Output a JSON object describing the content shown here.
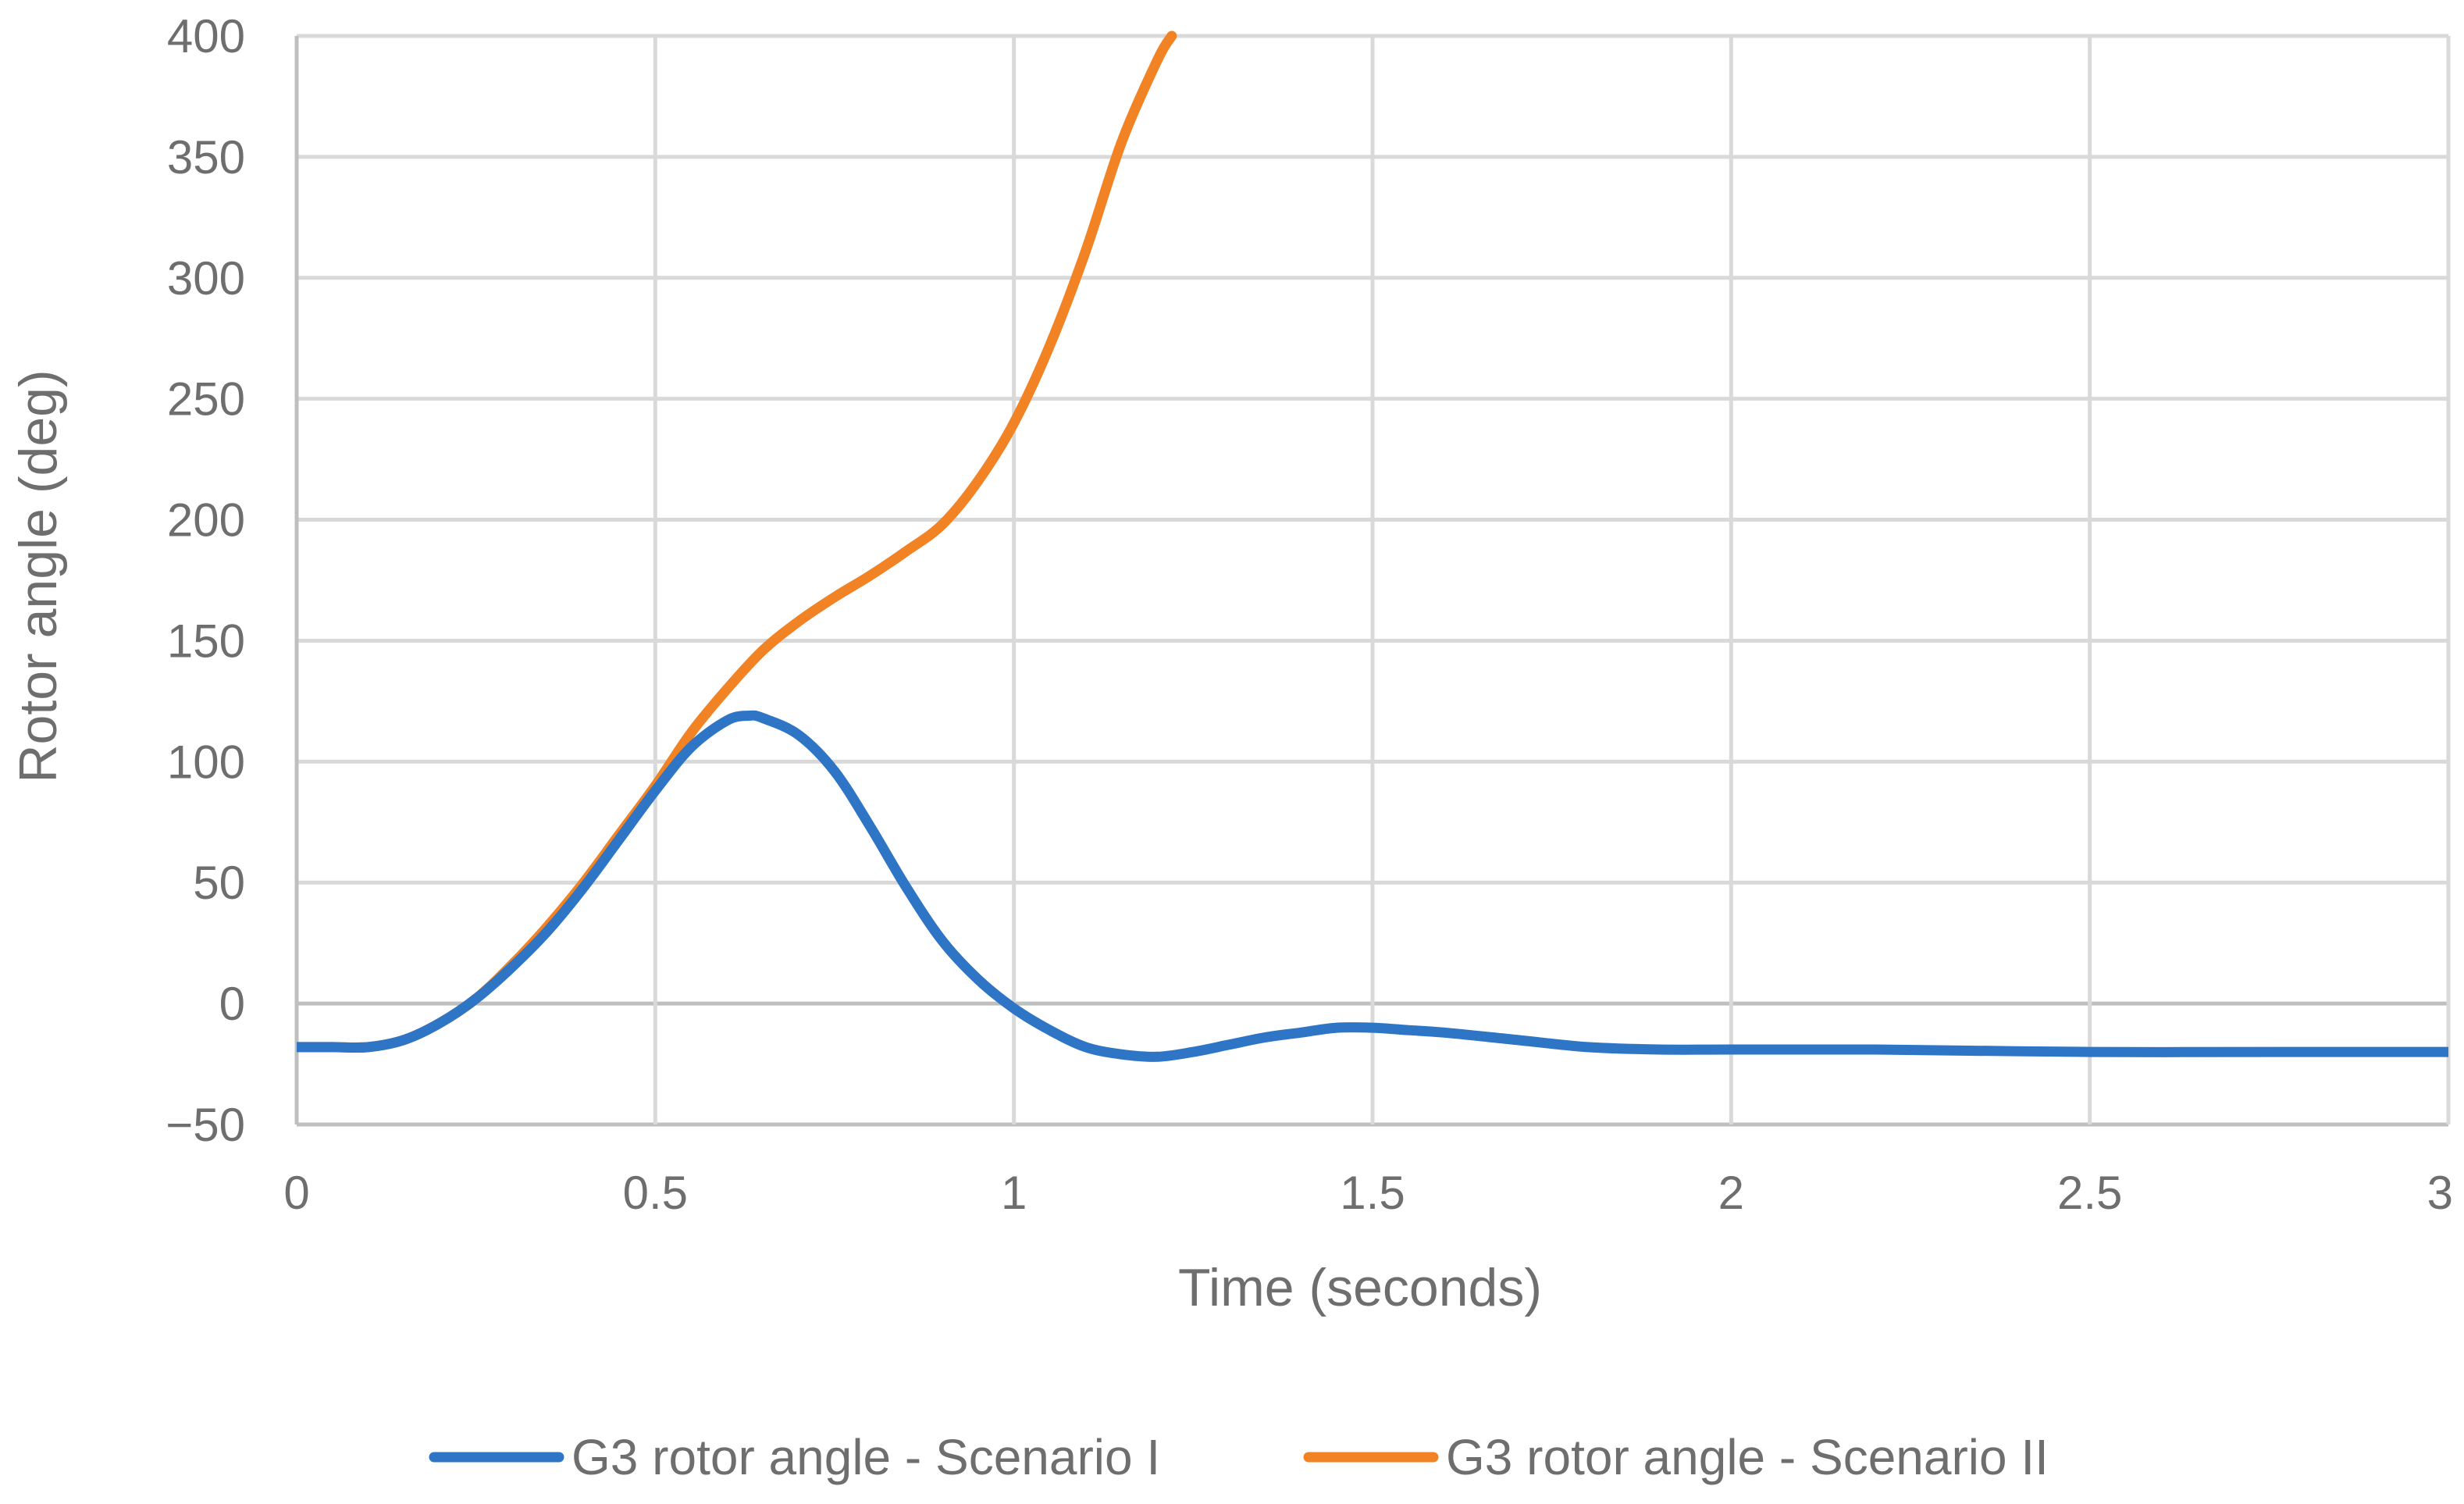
{
  "chart_data": {
    "type": "line",
    "title": "",
    "xlabel": "Time (seconds)",
    "ylabel": "Rotor angle (deg)",
    "xlim": [
      0,
      3
    ],
    "ylim": [
      -50,
      400
    ],
    "x_ticks": [
      "0",
      "0.5",
      "1",
      "1.5",
      "2",
      "2.5",
      "3"
    ],
    "y_ticks": [
      "400",
      "350",
      "300",
      "250",
      "200",
      "150",
      "100",
      "50",
      "0",
      "−50"
    ],
    "grid": true,
    "legend_position": "bottom",
    "series": [
      {
        "name": "G3 rotor angle - Scenario I",
        "color": "#2E75C6",
        "points": [
          [
            0,
            -18
          ],
          [
            0.05,
            -18
          ],
          [
            0.1,
            -18
          ],
          [
            0.15,
            -15
          ],
          [
            0.2,
            -8
          ],
          [
            0.25,
            2
          ],
          [
            0.3,
            15
          ],
          [
            0.35,
            30
          ],
          [
            0.4,
            48
          ],
          [
            0.45,
            68
          ],
          [
            0.5,
            88
          ],
          [
            0.55,
            106
          ],
          [
            0.6,
            117
          ],
          [
            0.63,
            119
          ],
          [
            0.65,
            118
          ],
          [
            0.7,
            111
          ],
          [
            0.75,
            96
          ],
          [
            0.8,
            73
          ],
          [
            0.85,
            48
          ],
          [
            0.9,
            26
          ],
          [
            0.95,
            10
          ],
          [
            1.0,
            -2
          ],
          [
            1.05,
            -11
          ],
          [
            1.1,
            -18
          ],
          [
            1.15,
            -21
          ],
          [
            1.2,
            -22
          ],
          [
            1.25,
            -20
          ],
          [
            1.3,
            -17
          ],
          [
            1.35,
            -14
          ],
          [
            1.4,
            -12
          ],
          [
            1.45,
            -10
          ],
          [
            1.5,
            -10
          ],
          [
            1.55,
            -11
          ],
          [
            1.6,
            -12
          ],
          [
            1.7,
            -15
          ],
          [
            1.8,
            -18
          ],
          [
            1.9,
            -19
          ],
          [
            2.0,
            -19
          ],
          [
            2.2,
            -19
          ],
          [
            2.5,
            -20
          ],
          [
            2.8,
            -20
          ],
          [
            3.0,
            -20
          ]
        ]
      },
      {
        "name": "G3 rotor angle - Scenario II",
        "color": "#F28325",
        "points": [
          [
            0,
            -18
          ],
          [
            0.05,
            -18
          ],
          [
            0.1,
            -18
          ],
          [
            0.15,
            -15
          ],
          [
            0.2,
            -8
          ],
          [
            0.25,
            2
          ],
          [
            0.3,
            16
          ],
          [
            0.35,
            32
          ],
          [
            0.4,
            50
          ],
          [
            0.45,
            70
          ],
          [
            0.5,
            90
          ],
          [
            0.55,
            112
          ],
          [
            0.6,
            130
          ],
          [
            0.65,
            146
          ],
          [
            0.7,
            158
          ],
          [
            0.75,
            168
          ],
          [
            0.8,
            177
          ],
          [
            0.85,
            187
          ],
          [
            0.9,
            198
          ],
          [
            0.95,
            216
          ],
          [
            1.0,
            240
          ],
          [
            1.05,
            272
          ],
          [
            1.1,
            311
          ],
          [
            1.15,
            356
          ],
          [
            1.2,
            390
          ],
          [
            1.22,
            400
          ]
        ]
      }
    ]
  }
}
